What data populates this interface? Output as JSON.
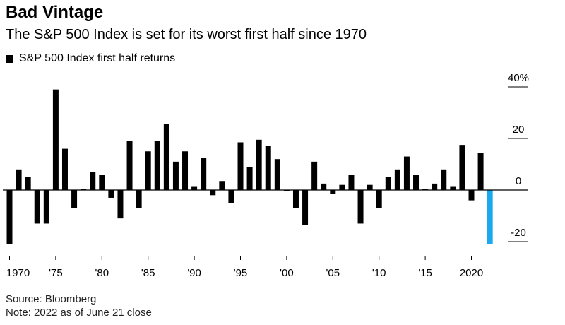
{
  "header": {
    "title": "Bad Vintage",
    "subtitle": "The S&P 500 Index is set for its worst first half since 1970"
  },
  "footer": {
    "source": "Source: Bloomberg",
    "note": "Note: 2022 as of June 21 close"
  },
  "colors": {
    "bar": "#000000",
    "highlight": "#1aa9f0"
  },
  "chart_data": {
    "type": "bar",
    "title": "Bad Vintage",
    "subtitle": "The S&P 500 Index is set for its worst first half since 1970",
    "legend": [
      "S&P 500 Index first half returns"
    ],
    "legend_position": "top-left",
    "x_tick_labels": [
      "1970",
      "'75",
      "'80",
      "'85",
      "'90",
      "'95",
      "'00",
      "'05",
      "'10",
      "'15",
      "2020"
    ],
    "y_tick_labels": [
      "40%",
      "20",
      "0",
      "-20"
    ],
    "ylim": [
      -21,
      40
    ],
    "grid": false,
    "highlight_category": "2022",
    "categories": [
      "1970",
      "1971",
      "1972",
      "1973",
      "1974",
      "1975",
      "1976",
      "1977",
      "1978",
      "1979",
      "1980",
      "1981",
      "1982",
      "1983",
      "1984",
      "1985",
      "1986",
      "1987",
      "1988",
      "1989",
      "1990",
      "1991",
      "1992",
      "1993",
      "1994",
      "1995",
      "1996",
      "1997",
      "1998",
      "1999",
      "2000",
      "2001",
      "2002",
      "2003",
      "2004",
      "2005",
      "2006",
      "2007",
      "2008",
      "2009",
      "2010",
      "2011",
      "2012",
      "2013",
      "2014",
      "2015",
      "2016",
      "2017",
      "2018",
      "2019",
      "2020",
      "2021",
      "2022"
    ],
    "series": [
      {
        "name": "S&P 500 Index first half returns",
        "values": [
          -21,
          8,
          5,
          -13,
          -13,
          39,
          16,
          -7,
          0.5,
          7,
          6,
          -3,
          -11,
          19,
          -7,
          15,
          19,
          25.5,
          11,
          15,
          1.5,
          12.5,
          -2,
          3.5,
          -5,
          18.5,
          9,
          19.5,
          17,
          12,
          -0.5,
          -7,
          -13.5,
          11,
          2.5,
          -1.5,
          2,
          6,
          -13,
          2,
          -7,
          5,
          8,
          13,
          6,
          0.5,
          2.5,
          8,
          1.5,
          17.5,
          -4,
          14.5,
          -21
        ]
      }
    ]
  }
}
